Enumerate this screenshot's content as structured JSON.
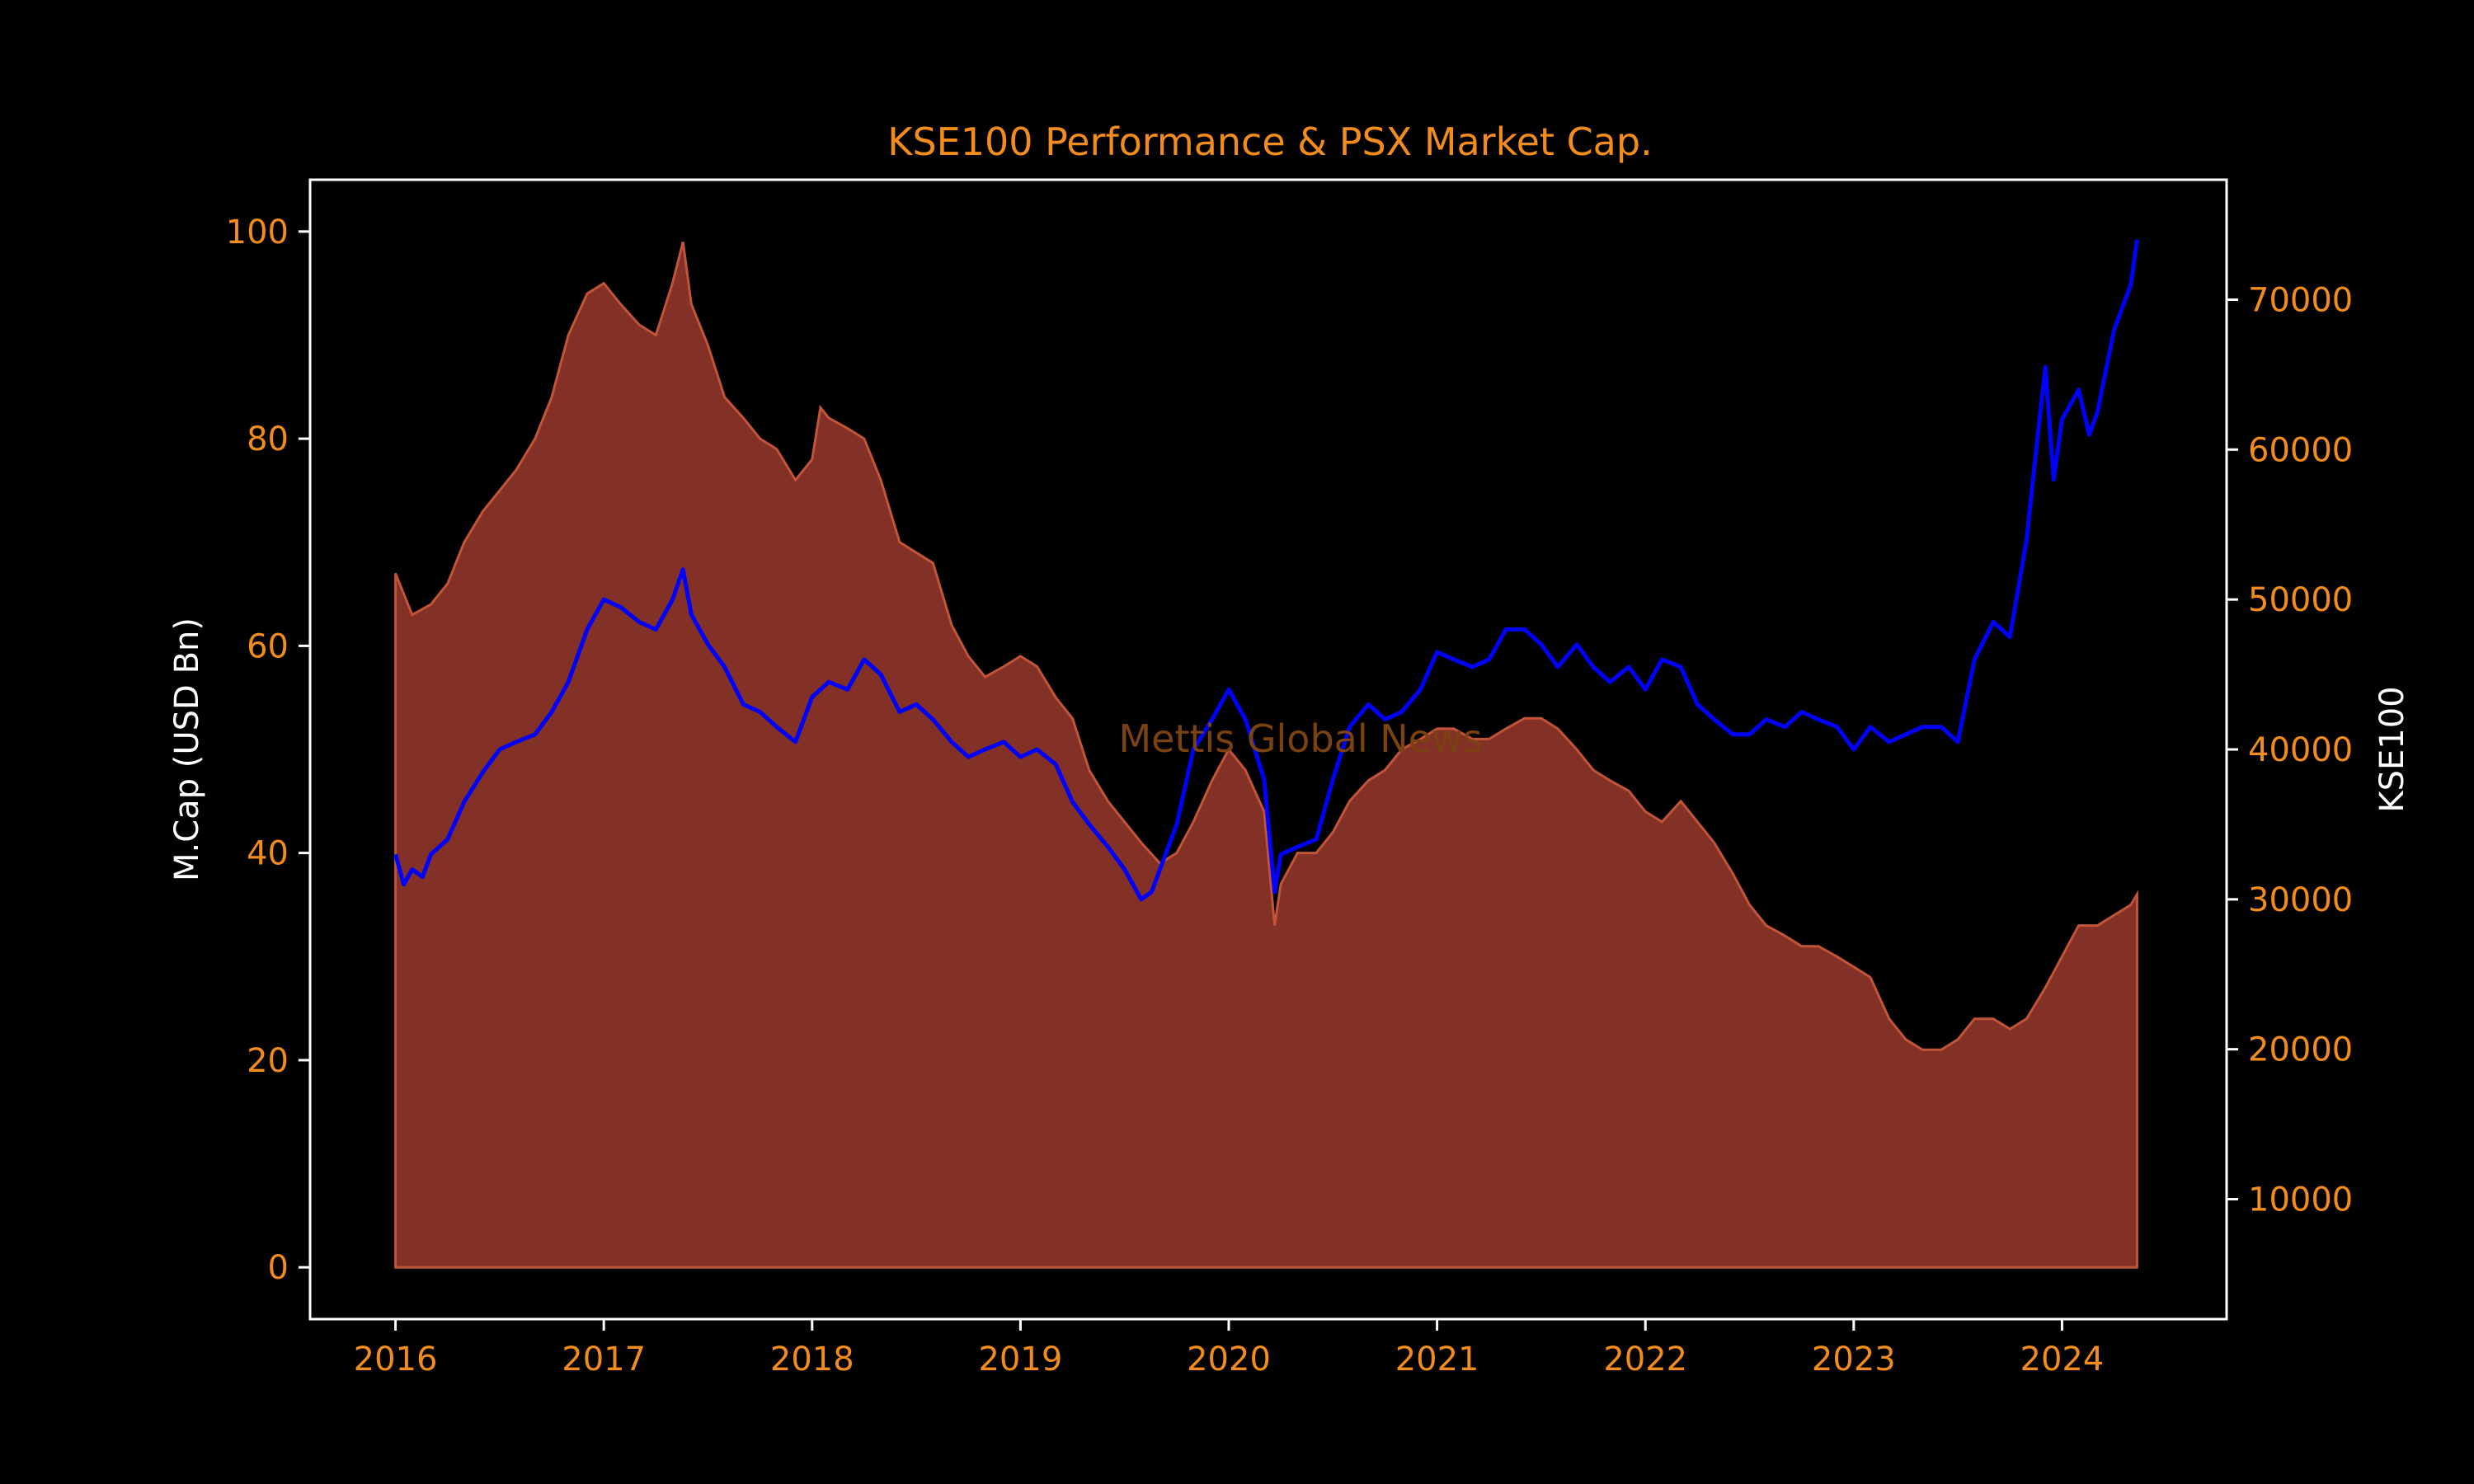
{
  "colors": {
    "background": "#000000",
    "text_orange": "#f28c1c",
    "text_white": "#ffffff",
    "frame": "#ffffff",
    "mcap_fill": "#833026",
    "mcap_edge": "#c2543a",
    "kse_line": "#0000ff",
    "watermark": "#7a4210"
  },
  "chart_data": {
    "type": "area",
    "title": "KSE100 Performance & PSX Market Cap.",
    "watermark": "Mettis Global News",
    "legend": "none",
    "grid": false,
    "x_ticks": [
      "2016",
      "2017",
      "2018",
      "2019",
      "2020",
      "2021",
      "2022",
      "2023",
      "2024"
    ],
    "x_range": [
      2015.59,
      2024.79
    ],
    "y_left": {
      "label": "M.Cap (USD Bn)",
      "range": [
        -5,
        105
      ],
      "ticks": [
        0,
        20,
        40,
        60,
        80,
        100
      ]
    },
    "y_right": {
      "label": "KSE100",
      "range": [
        2000,
        78000
      ],
      "ticks": [
        10000,
        20000,
        30000,
        40000,
        50000,
        60000,
        70000
      ]
    },
    "series": [
      {
        "name": "M.Cap (USD Bn)",
        "axis": "left",
        "style": "area",
        "x": [
          2016.0,
          2016.08,
          2016.17,
          2016.25,
          2016.33,
          2016.42,
          2016.5,
          2016.58,
          2016.67,
          2016.75,
          2016.83,
          2016.92,
          2017.0,
          2017.08,
          2017.17,
          2017.25,
          2017.33,
          2017.38,
          2017.42,
          2017.5,
          2017.58,
          2017.67,
          2017.75,
          2017.83,
          2017.92,
          2018.0,
          2018.04,
          2018.08,
          2018.17,
          2018.25,
          2018.33,
          2018.42,
          2018.5,
          2018.58,
          2018.67,
          2018.75,
          2018.83,
          2018.92,
          2019.0,
          2019.08,
          2019.17,
          2019.25,
          2019.33,
          2019.42,
          2019.5,
          2019.58,
          2019.67,
          2019.75,
          2019.83,
          2019.92,
          2020.0,
          2020.08,
          2020.17,
          2020.22,
          2020.25,
          2020.33,
          2020.42,
          2020.5,
          2020.58,
          2020.67,
          2020.75,
          2020.83,
          2020.92,
          2021.0,
          2021.08,
          2021.17,
          2021.25,
          2021.33,
          2021.42,
          2021.5,
          2021.58,
          2021.67,
          2021.75,
          2021.83,
          2021.92,
          2022.0,
          2022.08,
          2022.17,
          2022.25,
          2022.33,
          2022.42,
          2022.5,
          2022.58,
          2022.67,
          2022.75,
          2022.83,
          2022.92,
          2023.0,
          2023.08,
          2023.17,
          2023.25,
          2023.33,
          2023.42,
          2023.5,
          2023.58,
          2023.67,
          2023.75,
          2023.83,
          2023.92,
          2024.0,
          2024.08,
          2024.17,
          2024.25,
          2024.33,
          2024.36
        ],
        "values": [
          67,
          63,
          64,
          66,
          70,
          73,
          75,
          77,
          80,
          84,
          90,
          94,
          95,
          93,
          91,
          90,
          95,
          99,
          93,
          89,
          84,
          82,
          80,
          79,
          76,
          78,
          83,
          82,
          81,
          80,
          76,
          70,
          69,
          68,
          62,
          59,
          57,
          58,
          59,
          58,
          55,
          53,
          48,
          45,
          43,
          41,
          39,
          40,
          43,
          47,
          50,
          48,
          44,
          33,
          37,
          40,
          40,
          42,
          45,
          47,
          48,
          50,
          51,
          52,
          52,
          51,
          51,
          52,
          53,
          53,
          52,
          50,
          48,
          47,
          46,
          44,
          43,
          45,
          43,
          41,
          38,
          35,
          33,
          32,
          31,
          31,
          30,
          29,
          28,
          24,
          22,
          21,
          21,
          22,
          24,
          24,
          23,
          24,
          27,
          30,
          33,
          33,
          34,
          35,
          36
        ]
      },
      {
        "name": "KSE100",
        "axis": "right",
        "style": "line",
        "x": [
          2016.0,
          2016.04,
          2016.08,
          2016.13,
          2016.17,
          2016.25,
          2016.33,
          2016.42,
          2016.5,
          2016.58,
          2016.67,
          2016.75,
          2016.83,
          2016.92,
          2017.0,
          2017.08,
          2017.17,
          2017.25,
          2017.33,
          2017.38,
          2017.42,
          2017.5,
          2017.58,
          2017.67,
          2017.75,
          2017.83,
          2017.92,
          2018.0,
          2018.08,
          2018.17,
          2018.25,
          2018.33,
          2018.42,
          2018.5,
          2018.58,
          2018.67,
          2018.75,
          2018.83,
          2018.92,
          2019.0,
          2019.08,
          2019.17,
          2019.25,
          2019.33,
          2019.42,
          2019.5,
          2019.58,
          2019.63,
          2019.67,
          2019.75,
          2019.83,
          2019.92,
          2020.0,
          2020.08,
          2020.17,
          2020.22,
          2020.25,
          2020.33,
          2020.42,
          2020.5,
          2020.58,
          2020.67,
          2020.75,
          2020.83,
          2020.92,
          2021.0,
          2021.08,
          2021.17,
          2021.25,
          2021.33,
          2021.42,
          2021.5,
          2021.58,
          2021.67,
          2021.75,
          2021.83,
          2021.92,
          2022.0,
          2022.08,
          2022.17,
          2022.25,
          2022.33,
          2022.42,
          2022.5,
          2022.58,
          2022.67,
          2022.75,
          2022.83,
          2022.92,
          2023.0,
          2023.08,
          2023.17,
          2023.25,
          2023.33,
          2023.42,
          2023.5,
          2023.58,
          2023.67,
          2023.75,
          2023.83,
          2023.88,
          2023.92,
          2023.96,
          2024.0,
          2024.08,
          2024.13,
          2024.17,
          2024.25,
          2024.33,
          2024.36
        ],
        "values": [
          33000,
          31000,
          32000,
          31500,
          33000,
          34000,
          36500,
          38500,
          40000,
          40500,
          41000,
          42500,
          44500,
          48000,
          50000,
          49500,
          48500,
          48000,
          50000,
          52000,
          49000,
          47000,
          45500,
          43000,
          42500,
          41500,
          40500,
          43500,
          44500,
          44000,
          46000,
          45000,
          42500,
          43000,
          42000,
          40500,
          39500,
          40000,
          40500,
          39500,
          40000,
          39000,
          36500,
          35000,
          33500,
          32000,
          30000,
          30500,
          32000,
          35000,
          40000,
          42000,
          44000,
          42000,
          38000,
          30500,
          33000,
          33500,
          34000,
          38000,
          41500,
          43000,
          42000,
          42500,
          44000,
          46500,
          46000,
          45500,
          46000,
          48000,
          48000,
          47000,
          45500,
          47000,
          45500,
          44500,
          45500,
          44000,
          46000,
          45500,
          43000,
          42000,
          41000,
          41000,
          42000,
          41500,
          42500,
          42000,
          41500,
          40000,
          41500,
          40500,
          41000,
          41500,
          41500,
          40500,
          46000,
          48500,
          47500,
          54000,
          60500,
          65500,
          58000,
          62000,
          64000,
          61000,
          62500,
          68000,
          71000,
          74000
        ]
      }
    ]
  }
}
